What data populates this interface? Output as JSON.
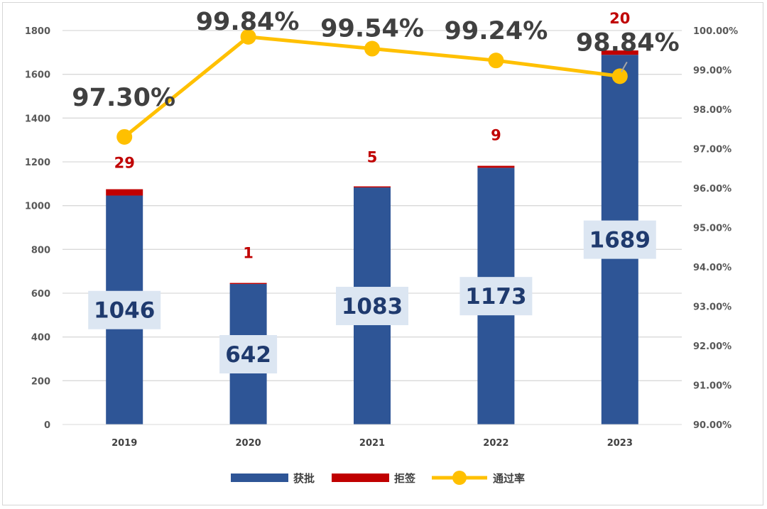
{
  "chart_data": {
    "type": "bar",
    "stacked": true,
    "categories": [
      "2019",
      "2020",
      "2021",
      "2022",
      "2023"
    ],
    "series": [
      {
        "name": "获批",
        "kind": "bar",
        "axis": "left",
        "color": "#2e5596",
        "values": [
          1046,
          642,
          1083,
          1173,
          1689
        ]
      },
      {
        "name": "拒签",
        "kind": "bar",
        "axis": "left",
        "color": "#c00000",
        "values": [
          29,
          1,
          5,
          9,
          20
        ]
      },
      {
        "name": "通过率",
        "kind": "line",
        "axis": "right",
        "color": "#ffc000",
        "values": [
          97.3,
          99.84,
          99.54,
          99.24,
          98.84
        ]
      }
    ],
    "data_labels": {
      "approved": [
        "1046",
        "642",
        "1083",
        "1173",
        "1689"
      ],
      "rejected": [
        "29",
        "1",
        "5",
        "9",
        "20"
      ],
      "rate": [
        "97.30%",
        "99.84%",
        "99.54%",
        "99.24%",
        "98.84%"
      ]
    },
    "y_left": {
      "min": 0,
      "max": 1800,
      "step": 200,
      "ticks": [
        "0",
        "200",
        "400",
        "600",
        "800",
        "1000",
        "1200",
        "1400",
        "1600",
        "1800"
      ]
    },
    "y_right": {
      "min": 90,
      "max": 100,
      "step": 1,
      "ticks": [
        "90.00%",
        "91.00%",
        "92.00%",
        "93.00%",
        "94.00%",
        "95.00%",
        "96.00%",
        "97.00%",
        "98.00%",
        "99.00%",
        "100.00%"
      ]
    },
    "grid": true,
    "legend": {
      "position": "bottom",
      "entries": [
        "获批",
        "拒签",
        "通过率"
      ]
    }
  }
}
